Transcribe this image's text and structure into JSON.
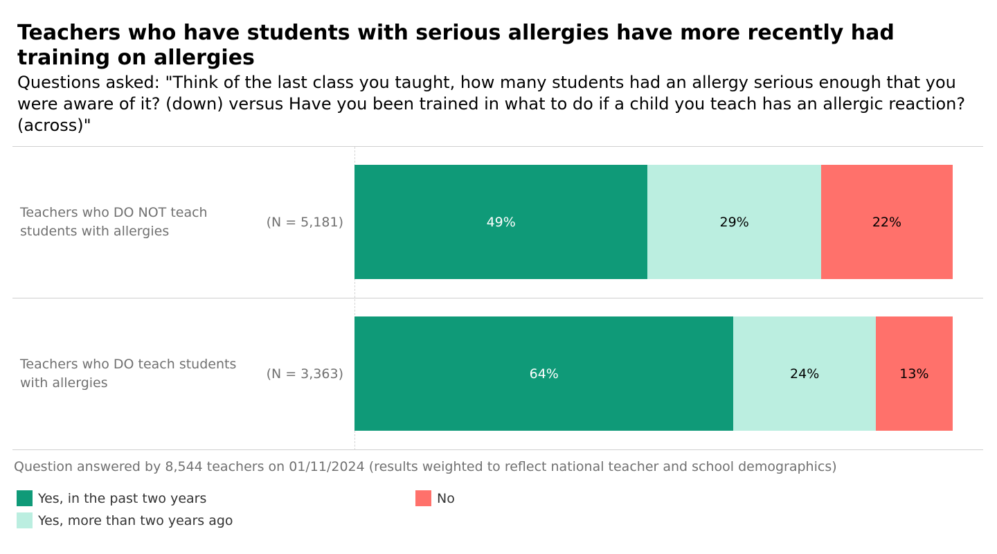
{
  "chart_data": {
    "type": "bar",
    "orientation": "horizontal",
    "stacked": "100%",
    "title": "Teachers who have students with serious allergies have more recently had training on allergies",
    "subtitle": "Questions asked: \"Think of the last class you taught, how many students had an allergy serious enough that you were aware of it? (down) versus Have you been trained in what to do if a child you teach has an allergic reaction? (across)\"",
    "categories": [
      "Teachers who DO NOT teach students with allergies",
      "Teachers who DO teach students with allergies"
    ],
    "sample_sizes": [
      "(N = 5,181)",
      "(N = 3,363)"
    ],
    "series": [
      {
        "name": "Yes, in the past two years",
        "values": [
          49,
          64
        ],
        "labels": [
          "49%",
          "64%"
        ],
        "color": "#0f9a78",
        "label_color": "#ffffff"
      },
      {
        "name": "Yes, more than two years ago",
        "values": [
          29,
          24
        ],
        "labels": [
          "29%",
          "24%"
        ],
        "color": "#bbeee0",
        "label_color": "#000000"
      },
      {
        "name": "No",
        "values": [
          22,
          13
        ],
        "labels": [
          "22%",
          "13%"
        ],
        "color": "#ff716b",
        "label_color": "#000000"
      }
    ],
    "xlim": [
      0,
      100
    ],
    "grid": false,
    "legend_position": "bottom-left",
    "footnote": "Question answered by 8,544 teachers on 01/11/2024 (results weighted to reflect national teacher and school demographics)"
  }
}
